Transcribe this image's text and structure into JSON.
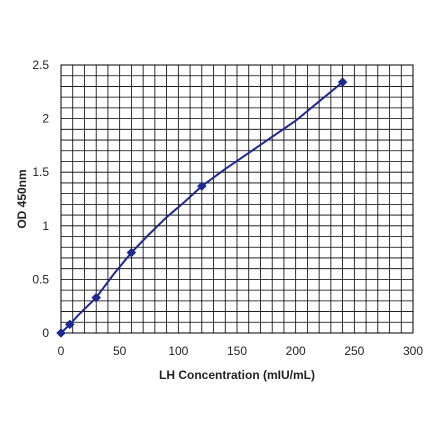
{
  "chart_data": {
    "type": "line",
    "title": "",
    "xlabel": "LH Concentration (mIU/mL)",
    "ylabel": "OD 450nm",
    "xlim": [
      0,
      300
    ],
    "ylim": [
      0,
      2.5
    ],
    "grid": true,
    "x_ticks": [
      "0",
      "50",
      "100",
      "150",
      "200",
      "250",
      "300"
    ],
    "y_ticks": [
      "0",
      "0.5",
      "1",
      "1.5",
      "2",
      "2.5"
    ],
    "x_minor_step": 10,
    "y_minor_step": 0.1,
    "series": [
      {
        "color": "#1f2a8c",
        "marker": "diamond",
        "x": [
          0,
          7.5,
          30,
          60,
          120,
          240
        ],
        "y": [
          0.0,
          0.08,
          0.33,
          0.75,
          1.37,
          2.34
        ]
      }
    ],
    "curve": {
      "x": [
        0,
        7.5,
        15,
        30,
        45,
        60,
        75,
        90,
        105,
        120,
        140,
        160,
        180,
        200,
        220,
        240
      ],
      "y": [
        0.0,
        0.08,
        0.17,
        0.33,
        0.55,
        0.75,
        0.92,
        1.08,
        1.22,
        1.37,
        1.53,
        1.68,
        1.83,
        1.98,
        2.16,
        2.34
      ]
    }
  }
}
